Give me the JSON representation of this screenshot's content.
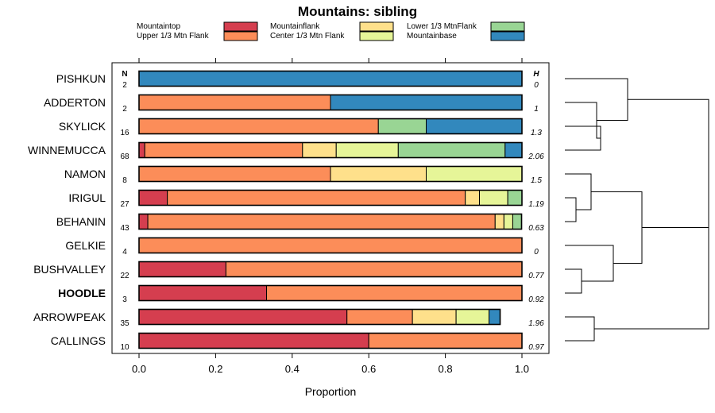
{
  "chart_data": {
    "type": "bar",
    "orientation": "horizontal",
    "stacked": true,
    "title": "Mountains: sibling",
    "xlabel": "Proportion",
    "ylabel": "",
    "xlim": [
      0,
      1
    ],
    "xticks": [
      "0.0",
      "0.2",
      "0.4",
      "0.6",
      "0.8",
      "1.0"
    ],
    "n_header": "N",
    "h_header": "H",
    "legend_position": "top",
    "categories": [
      "PISHKUN",
      "ADDERTON",
      "SKYLICK",
      "WINNEMUCCA",
      "NAMON",
      "IRIGUL",
      "BEHANIN",
      "GELKIE",
      "BUSHVALLEY",
      "HOODLE",
      "ARROWPEAK",
      "CALLINGS"
    ],
    "highlighted_category": "HOODLE",
    "n": [
      "2",
      "2",
      "16",
      "68",
      "8",
      "27",
      "43",
      "4",
      "22",
      "3",
      "35",
      "10"
    ],
    "h": [
      "0",
      "1",
      "1.3",
      "2.06",
      "1.5",
      "1.19",
      "0.63",
      "0",
      "0.77",
      "0.92",
      "1.96",
      "0.97"
    ],
    "series": [
      {
        "name": "Mountaintop",
        "color": "#d53e4f",
        "values": [
          0,
          0,
          0,
          0.015,
          0,
          0.074,
          0.023,
          0,
          0.227,
          0.333,
          0.543,
          0.6
        ]
      },
      {
        "name": "Upper 1/3 Mtn Flank",
        "color": "#fc8d59",
        "values": [
          0,
          0.5,
          0.625,
          0.412,
          0.5,
          0.778,
          0.907,
          1.0,
          0.773,
          0.667,
          0.171,
          0.4
        ]
      },
      {
        "name": "Mountainflank",
        "color": "#fee08b",
        "values": [
          0,
          0,
          0,
          0.088,
          0.25,
          0.037,
          0.023,
          0,
          0,
          0,
          0.114,
          0
        ]
      },
      {
        "name": "Center 1/3 Mtn Flank",
        "color": "#e6f598",
        "values": [
          0,
          0,
          0,
          0.162,
          0.25,
          0.074,
          0.023,
          0,
          0,
          0,
          0.086,
          0
        ]
      },
      {
        "name": "Lower 1/3 MtnFlank",
        "color": "#99d594",
        "values": [
          0,
          0,
          0.125,
          0.279,
          0,
          0.037,
          0.023,
          0,
          0,
          0,
          0,
          0
        ]
      },
      {
        "name": "Mountainbase",
        "color": "#3288bd",
        "values": [
          1.0,
          0.5,
          0.25,
          0.044,
          0,
          0,
          0,
          0,
          0,
          0,
          0.029,
          0
        ]
      }
    ],
    "dendrogram": "((PISHKUN,(ADDERTON,(SKYLICK,WINNEMUCCA))),((NAMON,(IRIGUL,BEHANIN)),(GELKIE,(BUSHVALLEY,HOODLE))),(ARROWPEAK,CALLINGS))"
  }
}
